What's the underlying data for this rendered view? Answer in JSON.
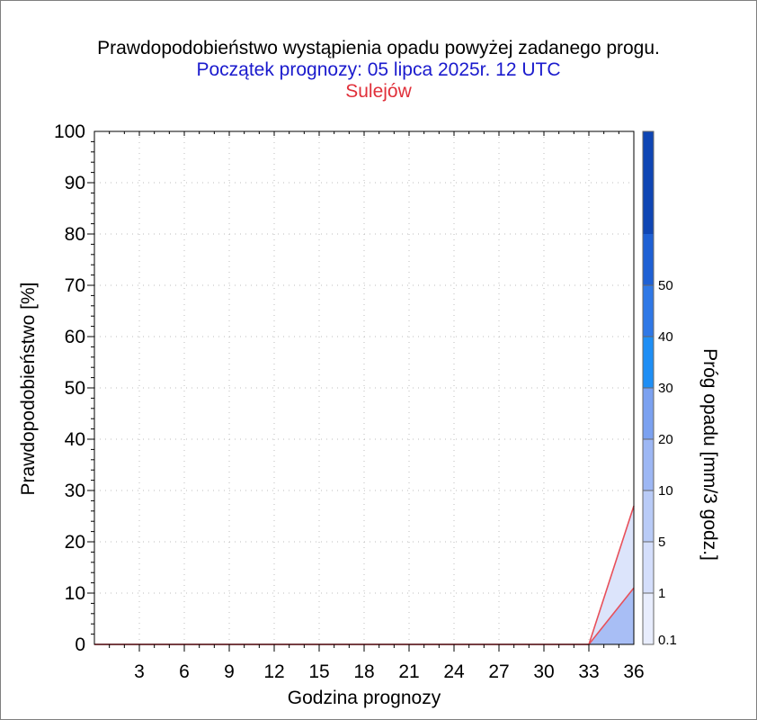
{
  "chart_data": {
    "type": "area",
    "title": "Prawdopodobieństwo wystąpienia opadu powyżej zadanego progu.",
    "subtitle": "Początek prognozy: 05 lipca 2025r. 12 UTC",
    "station": "Sulejów",
    "xlabel": "Godzina prognozy",
    "ylabel": "Prawdopodobieństwo [%]",
    "xlim": [
      0,
      36
    ],
    "ylim": [
      0,
      100
    ],
    "x_ticks": [
      "3",
      "6",
      "9",
      "12",
      "15",
      "18",
      "21",
      "24",
      "27",
      "30",
      "33",
      "36"
    ],
    "y_ticks": [
      "0",
      "10",
      "20",
      "30",
      "40",
      "50",
      "60",
      "70",
      "80",
      "90",
      "100"
    ],
    "grid": true,
    "x": [
      0,
      3,
      6,
      9,
      12,
      15,
      18,
      21,
      24,
      27,
      30,
      33,
      36
    ],
    "series": [
      {
        "threshold": "0.1",
        "values": [
          0,
          0,
          0,
          0,
          0,
          0,
          0,
          0,
          0,
          0,
          0,
          0,
          27
        ],
        "fill": "#dce4fb"
      },
      {
        "threshold": "1",
        "values": [
          0,
          0,
          0,
          0,
          0,
          0,
          0,
          0,
          0,
          0,
          0,
          0,
          11
        ],
        "fill": "#a8bef5"
      }
    ],
    "line_color": "#e8505a",
    "colorbar": {
      "label": "Próg opadu [mm/3 godz.]",
      "ticks": [
        "0.1",
        "1",
        "5",
        "10",
        "20",
        "30",
        "40",
        "50"
      ],
      "colors": [
        "#e8edfd",
        "#d4defb",
        "#b9cbf7",
        "#9db7f4",
        "#7ba1f0",
        "#1e8ef5",
        "#2f78e6",
        "#1e60d4",
        "#0f46b4"
      ]
    }
  }
}
